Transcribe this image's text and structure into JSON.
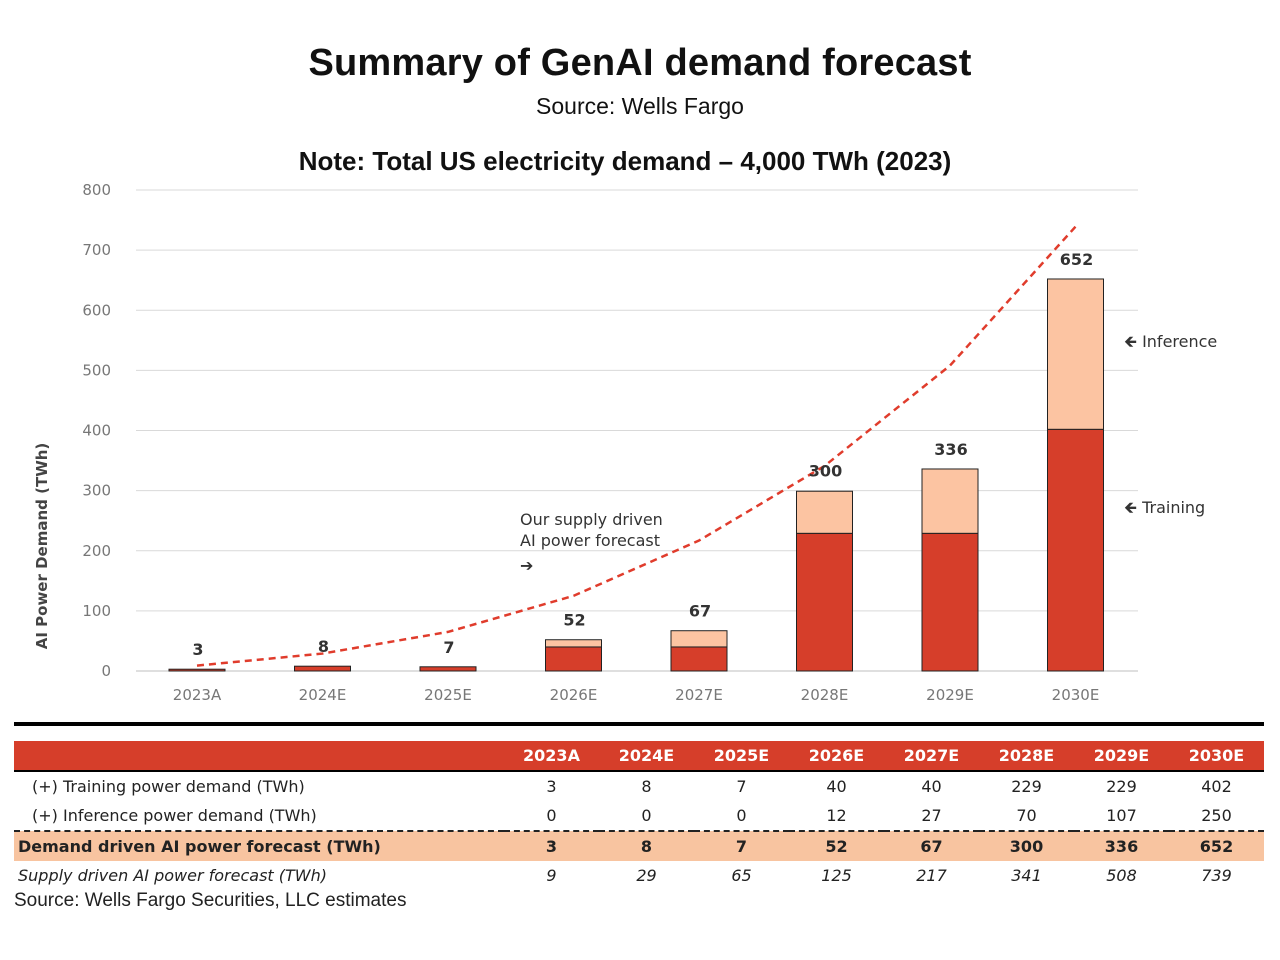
{
  "header": {
    "title": "Summary of GenAI demand forecast",
    "subtitle": "Source: Wells Fargo",
    "note": "Note: Total US electricity demand – 4,000 TWh (2023)"
  },
  "chart_data": {
    "type": "bar",
    "stacked": true,
    "ylabel": "AI Power Demand (TWh)",
    "ylim": [
      0,
      800
    ],
    "yticks": [
      0,
      100,
      200,
      300,
      400,
      500,
      600,
      700,
      800
    ],
    "grid": true,
    "categories": [
      "2023A",
      "2024E",
      "2025E",
      "2026E",
      "2027E",
      "2028E",
      "2029E",
      "2030E"
    ],
    "series": [
      {
        "name": "Training",
        "values": [
          3,
          8,
          7,
          40,
          40,
          229,
          229,
          402
        ],
        "color": "#d63e2a"
      },
      {
        "name": "Inference",
        "values": [
          0,
          0,
          0,
          12,
          27,
          70,
          107,
          250
        ],
        "color": "#fcc4a2"
      }
    ],
    "totals": [
      3,
      8,
      7,
      52,
      67,
      300,
      336,
      652
    ],
    "line": {
      "values": [
        9,
        29,
        65,
        125,
        217,
        341,
        508,
        739
      ],
      "color": "#e03c2c",
      "style": "dashed"
    },
    "annotations": {
      "supply_line_1": "Our supply driven",
      "supply_line_2": "AI power forecast",
      "supply_arrow": "➔",
      "inference": "🡸 Inference",
      "training": "🡸 Training"
    }
  },
  "table": {
    "headers": [
      "2023A",
      "2024E",
      "2025E",
      "2026E",
      "2027E",
      "2028E",
      "2029E",
      "2030E"
    ],
    "rows": [
      {
        "label": "(+) Training power demand (TWh)",
        "values": [
          "3",
          "8",
          "7",
          "40",
          "40",
          "229",
          "229",
          "402"
        ]
      },
      {
        "label": "(+) Inference power demand (TWh)",
        "values": [
          "0",
          "0",
          "0",
          "12",
          "27",
          "70",
          "107",
          "250"
        ]
      },
      {
        "label": "Demand driven AI power forecast (TWh)",
        "values": [
          "3",
          "8",
          "7",
          "52",
          "67",
          "300",
          "336",
          "652"
        ]
      },
      {
        "label": "Supply driven AI power forecast (TWh)",
        "values": [
          "9",
          "29",
          "65",
          "125",
          "217",
          "341",
          "508",
          "739"
        ]
      }
    ]
  },
  "footer": {
    "source": "Source: Wells Fargo Securities, LLC estimates"
  }
}
